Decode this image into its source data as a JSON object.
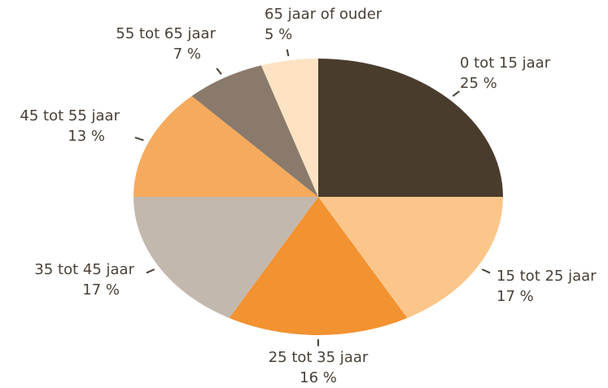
{
  "chart_data": {
    "type": "pie",
    "categories": [
      "0 tot 15 jaar",
      "15 tot 25 jaar",
      "25 tot 35 jaar",
      "35 tot 45 jaar",
      "45 tot 55 jaar",
      "55 tot 65 jaar",
      "65 jaar of ouder"
    ],
    "values": [
      25,
      17,
      16,
      17,
      13,
      7,
      5
    ],
    "value_labels": [
      "25 %",
      "17 %",
      "16 %",
      "17 %",
      "13 %",
      "7 %",
      "5 %"
    ],
    "colors": [
      "#4a3c2d",
      "#fcc68a",
      "#f29231",
      "#c3b8ae",
      "#f6aa5d",
      "#8a7a6b",
      "#fde3c3"
    ]
  }
}
